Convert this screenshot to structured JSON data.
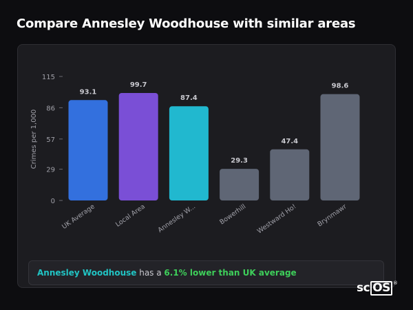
{
  "page": {
    "title": "Compare Annesley Woodhouse with similar areas"
  },
  "chart_data": {
    "type": "bar",
    "ylabel": "Crimes per 1,000",
    "xlabel": "",
    "ylim": [
      0,
      115
    ],
    "yticks": [
      0,
      29,
      57,
      86,
      115
    ],
    "grid": false,
    "categories": [
      "UK Average",
      "Local Area",
      "Annesley W...",
      "Bowerhill",
      "Westward Ho!",
      "Brynmawr"
    ],
    "values": [
      93.1,
      99.7,
      87.4,
      29.3,
      47.4,
      98.6
    ],
    "value_labels": [
      "93.1",
      "99.7",
      "87.4",
      "29.3",
      "47.4",
      "98.6"
    ],
    "colors": [
      "#3370de",
      "#7a4fd6",
      "#21b8cf",
      "#5f6675",
      "#5f6675",
      "#5f6675"
    ]
  },
  "summary": {
    "area": "Annesley Woodhouse",
    "text1": " has a ",
    "highlight": "6.1% lower than UK average"
  },
  "logo": {
    "prefix": "sc",
    "boxed": "OS",
    "mark": "®"
  }
}
